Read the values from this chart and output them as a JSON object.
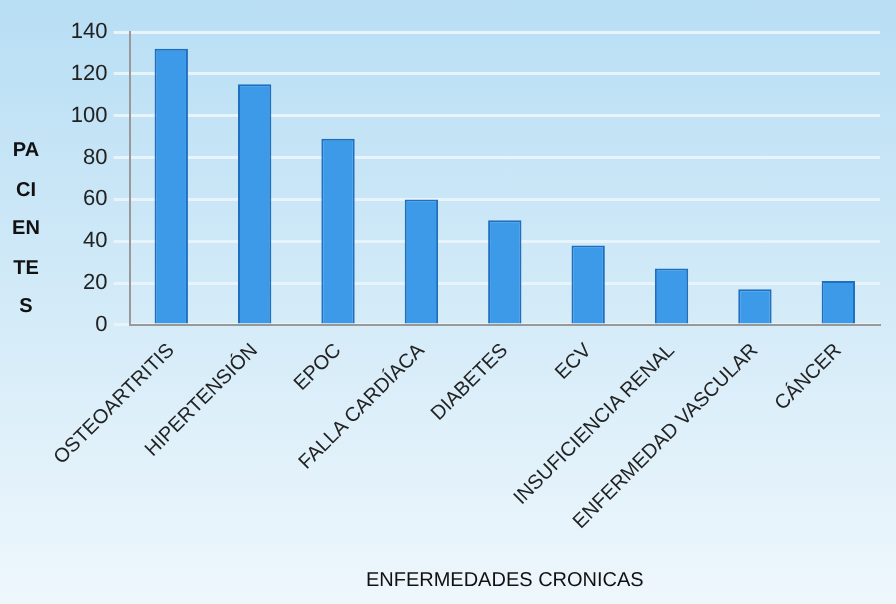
{
  "chart_data": {
    "type": "bar",
    "xlabel": "ENFERMEDADES CRONICAS",
    "ylabel": "PACIENTES",
    "categories": [
      "OSTEOARTRITIS",
      "HIPERTENSIÓN",
      "EPOC",
      "FALLA CARDÍACA",
      "DIABETES",
      "ECV",
      "INSUFICIENCIA RENAL",
      "ENFERMEDAD VASCULAR",
      "CÁNCER"
    ],
    "values": [
      132,
      115,
      89,
      60,
      50,
      38,
      27,
      17,
      21
    ],
    "color": "#3c9ae8",
    "ylim": [
      0,
      140
    ],
    "yticks": [
      0,
      20,
      40,
      60,
      80,
      100,
      120,
      140
    ],
    "grid": "y"
  }
}
